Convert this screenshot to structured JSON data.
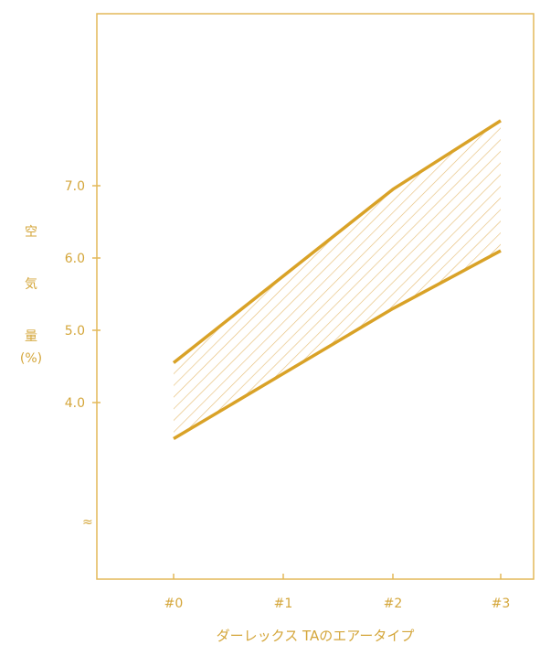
{
  "chart_data": {
    "type": "area",
    "colors": {
      "line": "#d9a227",
      "hatch": "#e7c07a",
      "axis": "#d9a227",
      "text": "#d4a63a"
    },
    "categories": [
      "#0",
      "#1",
      "#2",
      "#3"
    ],
    "series": [
      {
        "values": [
          4.55,
          5.75,
          6.95,
          7.9
        ]
      },
      {
        "values": [
          3.5,
          4.4,
          5.3,
          6.1
        ]
      }
    ],
    "ylim": [
      0,
      8.0
    ],
    "y_ticks": [
      "4.0",
      "5.0",
      "6.0",
      "7.0"
    ],
    "y_ticks_values": [
      4.0,
      5.0,
      6.0,
      7.0
    ],
    "broken_axis_mark": "≈",
    "ylabel": [
      "空",
      "気",
      "量",
      "(%)"
    ],
    "xlabel": "ダーレックス TAのエアータイプ",
    "grid": false,
    "legend": "none"
  }
}
